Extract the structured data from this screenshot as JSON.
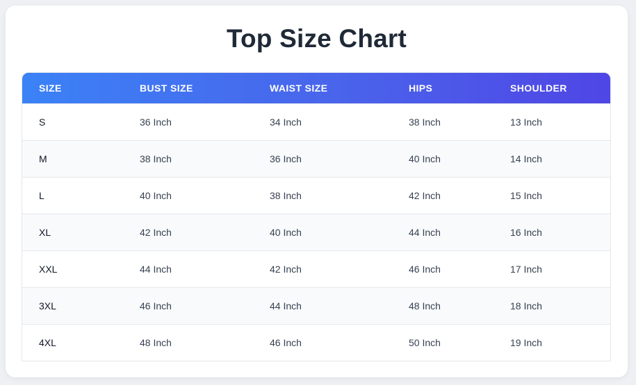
{
  "page": {
    "title": "Top Size Chart"
  },
  "table": {
    "headers": [
      "SIZE",
      "BUST SIZE",
      "WAIST SIZE",
      "HIPS",
      "SHOULDER"
    ],
    "rows": [
      [
        "S",
        "36 Inch",
        "34 Inch",
        "38 Inch",
        "13 Inch"
      ],
      [
        "M",
        "38 Inch",
        "36 Inch",
        "40 Inch",
        "14 Inch"
      ],
      [
        "L",
        "40 Inch",
        "38 Inch",
        "42 Inch",
        "15 Inch"
      ],
      [
        "XL",
        "42 Inch",
        "40 Inch",
        "44 Inch",
        "16 Inch"
      ],
      [
        "XXL",
        "44 Inch",
        "42 Inch",
        "46 Inch",
        "17 Inch"
      ],
      [
        "3XL",
        "46 Inch",
        "44 Inch",
        "48 Inch",
        "18 Inch"
      ],
      [
        "4XL",
        "48 Inch",
        "46 Inch",
        "50 Inch",
        "19 Inch"
      ]
    ]
  },
  "colors": {
    "header_gradient_start": "#3b82f6",
    "header_gradient_end": "#4f46e5",
    "title": "#1f2937",
    "stripe": "#f8fafc"
  }
}
